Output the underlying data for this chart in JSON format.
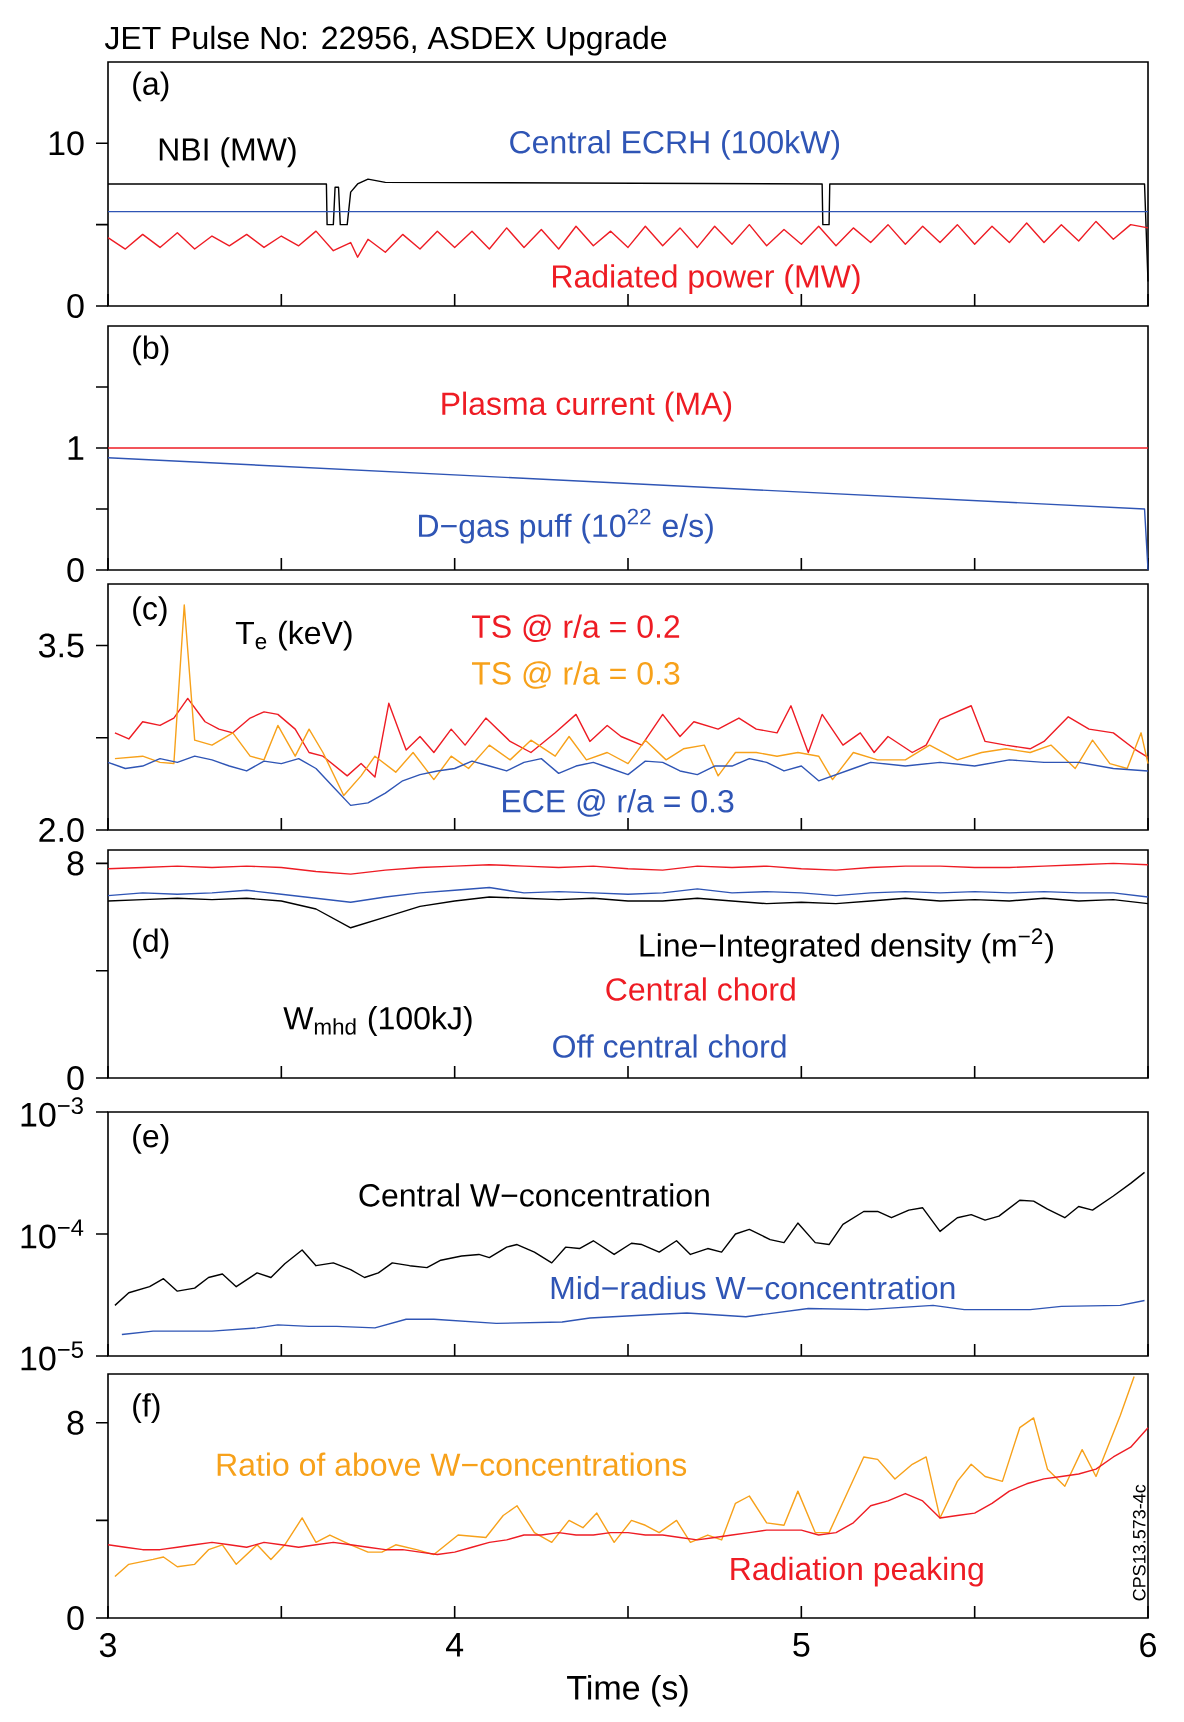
{
  "chart_data": [
    {
      "type": "line",
      "title": "JET Pulse No: 22956, ASDEX Upgrade",
      "annotations": [
        "(a)"
      ],
      "xlim": [
        3,
        6
      ],
      "ylim": [
        0,
        15
      ],
      "xticks": [
        3,
        3.5,
        4,
        4.5,
        5,
        5.5,
        6
      ],
      "yticks": [
        0,
        {
          "value": 5,
          "label": null
        },
        10
      ],
      "tick_labels": "y",
      "series": [
        {
          "name": "NBI (MW)",
          "color": "#000000",
          "x": [
            3,
            3.63,
            3.632,
            3.65,
            3.655,
            3.665,
            3.67,
            3.69,
            3.7,
            3.72,
            3.75,
            3.8,
            5.06,
            5.062,
            5.08,
            5.082,
            5.99,
            6
          ],
          "values": [
            7.5,
            7.5,
            5.0,
            5.0,
            7.3,
            7.3,
            5.0,
            5.0,
            7.0,
            7.5,
            7.8,
            7.6,
            7.5,
            5.0,
            5.0,
            7.5,
            7.5,
            1.5
          ]
        },
        {
          "name": "Central ECRH (100kW)",
          "color": "#2f55b5",
          "x": [
            3,
            4.5,
            6
          ],
          "values": [
            5.8,
            5.8,
            5.8
          ]
        },
        {
          "name": "Radiated power (MW)",
          "color": "#ee1c24",
          "x": [
            3.0,
            3.05,
            3.1,
            3.15,
            3.2,
            3.25,
            3.3,
            3.35,
            3.4,
            3.45,
            3.5,
            3.55,
            3.6,
            3.65,
            3.7,
            3.72,
            3.75,
            3.8,
            3.85,
            3.9,
            3.95,
            4.0,
            4.05,
            4.1,
            4.15,
            4.2,
            4.25,
            4.3,
            4.35,
            4.4,
            4.45,
            4.5,
            4.55,
            4.6,
            4.65,
            4.7,
            4.75,
            4.8,
            4.85,
            4.9,
            4.95,
            5.0,
            5.05,
            5.1,
            5.15,
            5.2,
            5.25,
            5.3,
            5.35,
            5.4,
            5.45,
            5.5,
            5.55,
            5.6,
            5.65,
            5.7,
            5.75,
            5.8,
            5.85,
            5.9,
            5.95,
            6.0
          ],
          "values": [
            4.2,
            3.5,
            4.4,
            3.6,
            4.5,
            3.5,
            4.3,
            3.7,
            4.4,
            3.6,
            4.3,
            3.7,
            4.6,
            3.4,
            3.9,
            3.0,
            4.1,
            3.3,
            4.4,
            3.5,
            4.6,
            3.6,
            4.6,
            3.5,
            4.8,
            3.6,
            4.7,
            3.5,
            4.9,
            3.7,
            4.6,
            3.6,
            4.9,
            3.7,
            4.8,
            3.6,
            4.9,
            3.8,
            5.0,
            3.7,
            4.7,
            3.8,
            4.9,
            3.7,
            4.8,
            3.9,
            5.0,
            3.8,
            4.9,
            3.9,
            5.0,
            3.8,
            4.9,
            3.9,
            5.1,
            3.9,
            5.0,
            4.0,
            5.2,
            4.1,
            5.0,
            4.8
          ]
        }
      ]
    },
    {
      "type": "line",
      "annotations": [
        "(b)"
      ],
      "xlim": [
        3,
        6
      ],
      "ylim": [
        0,
        2
      ],
      "xticks": [
        3,
        3.5,
        4,
        4.5,
        5,
        5.5,
        6
      ],
      "yticks": [
        0,
        {
          "value": 0.5,
          "label": null
        },
        1,
        {
          "value": 1.5,
          "label": null
        }
      ],
      "tick_labels": "y",
      "series": [
        {
          "name": "Plasma current (MA)",
          "color": "#ee1c24",
          "x": [
            3,
            3.5,
            4,
            4.5,
            5,
            5.5,
            6
          ],
          "values": [
            1.0,
            1.0,
            1.0,
            1.0,
            1.0,
            1.0,
            1.0
          ]
        },
        {
          "name": "D−gas puff (10$^{22}$ e/s)",
          "color": "#2f55b5",
          "x": [
            3,
            5.99,
            6
          ],
          "values": [
            0.92,
            0.5,
            0
          ]
        }
      ]
    },
    {
      "type": "line",
      "annotations": [
        "(c)",
        "T$_{e}$ (keV)"
      ],
      "xlim": [
        3,
        6
      ],
      "ylim": [
        2,
        4
      ],
      "xticks": [
        3,
        3.5,
        4,
        4.5,
        5,
        5.5,
        6
      ],
      "yticks": [
        {
          "value": 2,
          "label": "2.0"
        },
        {
          "value": 2.75,
          "label": null
        },
        3.5
      ],
      "tick_labels": "y",
      "series": [
        {
          "name": "TS @ r/a = 0.2",
          "color": "#ee1c24",
          "x": [
            3.02,
            3.06,
            3.1,
            3.15,
            3.19,
            3.23,
            3.28,
            3.32,
            3.36,
            3.41,
            3.45,
            3.49,
            3.54,
            3.58,
            3.62,
            3.69,
            3.73,
            3.77,
            3.81,
            3.86,
            3.9,
            3.94,
            3.99,
            4.03,
            4.09,
            4.16,
            4.22,
            4.29,
            4.35,
            4.39,
            4.44,
            4.48,
            4.54,
            4.6,
            4.65,
            4.69,
            4.76,
            4.82,
            4.87,
            4.93,
            4.97,
            5.02,
            5.06,
            5.12,
            5.17,
            5.21,
            5.25,
            5.32,
            5.36,
            5.4,
            5.49,
            5.53,
            5.59,
            5.66,
            5.7,
            5.77,
            5.83,
            5.9,
            5.96,
            6.0
          ],
          "values": [
            2.79,
            2.74,
            2.88,
            2.85,
            2.91,
            3.07,
            2.88,
            2.82,
            2.79,
            2.91,
            2.96,
            2.94,
            2.82,
            2.63,
            2.6,
            2.44,
            2.54,
            2.43,
            3.03,
            2.65,
            2.76,
            2.63,
            2.82,
            2.69,
            2.91,
            2.72,
            2.63,
            2.79,
            2.94,
            2.72,
            2.85,
            2.76,
            2.69,
            2.94,
            2.76,
            2.88,
            2.82,
            2.91,
            2.82,
            2.79,
            3.01,
            2.63,
            2.94,
            2.69,
            2.79,
            2.63,
            2.76,
            2.63,
            2.69,
            2.9,
            3.01,
            2.72,
            2.69,
            2.66,
            2.72,
            2.92,
            2.82,
            2.79,
            2.66,
            2.59
          ]
        },
        {
          "name": "TS @ r/a = 0.3",
          "color": "#f7a11a",
          "x": [
            3.02,
            3.1,
            3.15,
            3.19,
            3.22,
            3.25,
            3.3,
            3.36,
            3.41,
            3.45,
            3.49,
            3.54,
            3.58,
            3.62,
            3.68,
            3.73,
            3.77,
            3.83,
            3.88,
            3.94,
            3.99,
            4.04,
            4.1,
            4.16,
            4.22,
            4.29,
            4.33,
            4.38,
            4.44,
            4.5,
            4.55,
            4.61,
            4.66,
            4.72,
            4.76,
            4.81,
            4.87,
            4.93,
            4.99,
            5.05,
            5.09,
            5.15,
            5.22,
            5.3,
            5.37,
            5.45,
            5.52,
            5.59,
            5.66,
            5.72,
            5.79,
            5.84,
            5.89,
            5.94,
            5.98,
            6.0
          ],
          "values": [
            2.58,
            2.6,
            2.55,
            2.54,
            3.83,
            2.73,
            2.69,
            2.79,
            2.6,
            2.57,
            2.85,
            2.6,
            2.82,
            2.63,
            2.28,
            2.44,
            2.6,
            2.47,
            2.63,
            2.41,
            2.6,
            2.5,
            2.69,
            2.57,
            2.73,
            2.6,
            2.76,
            2.57,
            2.63,
            2.54,
            2.73,
            2.57,
            2.66,
            2.69,
            2.44,
            2.63,
            2.63,
            2.6,
            2.63,
            2.6,
            2.41,
            2.63,
            2.57,
            2.57,
            2.69,
            2.57,
            2.63,
            2.66,
            2.63,
            2.69,
            2.5,
            2.73,
            2.54,
            2.5,
            2.79,
            2.54
          ]
        },
        {
          "name": "ECE @ r/a = 0.3",
          "color": "#2f55b5",
          "x": [
            3.0,
            3.05,
            3.1,
            3.15,
            3.2,
            3.25,
            3.3,
            3.35,
            3.4,
            3.45,
            3.5,
            3.55,
            3.6,
            3.65,
            3.7,
            3.75,
            3.8,
            3.85,
            3.9,
            3.95,
            4.0,
            4.05,
            4.1,
            4.15,
            4.2,
            4.25,
            4.3,
            4.35,
            4.4,
            4.45,
            4.5,
            4.55,
            4.6,
            4.65,
            4.7,
            4.75,
            4.8,
            4.85,
            4.9,
            4.95,
            5.0,
            5.05,
            5.1,
            5.15,
            5.2,
            5.3,
            5.4,
            5.5,
            5.6,
            5.7,
            5.8,
            5.9,
            6.0
          ],
          "values": [
            2.55,
            2.5,
            2.52,
            2.58,
            2.55,
            2.6,
            2.57,
            2.52,
            2.48,
            2.56,
            2.54,
            2.58,
            2.5,
            2.35,
            2.2,
            2.22,
            2.3,
            2.4,
            2.45,
            2.48,
            2.5,
            2.56,
            2.52,
            2.48,
            2.55,
            2.58,
            2.46,
            2.52,
            2.55,
            2.5,
            2.45,
            2.56,
            2.55,
            2.48,
            2.45,
            2.52,
            2.52,
            2.58,
            2.55,
            2.48,
            2.52,
            2.4,
            2.45,
            2.5,
            2.55,
            2.52,
            2.55,
            2.52,
            2.57,
            2.55,
            2.55,
            2.5,
            2.48
          ]
        }
      ]
    },
    {
      "type": "line",
      "annotations": [
        "(d)"
      ],
      "legend_title": "Line−Integrated density (m$^{−2}$)",
      "xlim": [
        3,
        6
      ],
      "ylim": [
        0,
        8.5
      ],
      "xticks": [
        3,
        3.5,
        4,
        4.5,
        5,
        5.5,
        6
      ],
      "yticks": [
        0,
        {
          "value": 4,
          "label": null
        },
        8
      ],
      "tick_labels": "y",
      "series": [
        {
          "name": "W$_{mhd}$ (100kJ)",
          "color": "#000000",
          "x": [
            3.0,
            3.1,
            3.2,
            3.3,
            3.4,
            3.5,
            3.6,
            3.7,
            3.8,
            3.9,
            4.0,
            4.1,
            4.2,
            4.3,
            4.4,
            4.5,
            4.6,
            4.7,
            4.8,
            4.9,
            5.0,
            5.1,
            5.2,
            5.3,
            5.4,
            5.5,
            5.6,
            5.7,
            5.8,
            5.9,
            6.0
          ],
          "values": [
            6.6,
            6.65,
            6.7,
            6.65,
            6.7,
            6.6,
            6.3,
            5.6,
            6.0,
            6.4,
            6.6,
            6.75,
            6.7,
            6.65,
            6.7,
            6.6,
            6.6,
            6.7,
            6.6,
            6.5,
            6.55,
            6.5,
            6.6,
            6.7,
            6.6,
            6.65,
            6.6,
            6.7,
            6.6,
            6.65,
            6.5
          ]
        },
        {
          "name": "Central chord",
          "color": "#ee1c24",
          "x": [
            3.0,
            3.1,
            3.2,
            3.3,
            3.4,
            3.5,
            3.6,
            3.7,
            3.8,
            3.9,
            4.0,
            4.1,
            4.2,
            4.3,
            4.4,
            4.5,
            4.6,
            4.7,
            4.8,
            4.9,
            5.0,
            5.1,
            5.2,
            5.3,
            5.4,
            5.5,
            5.6,
            5.7,
            5.8,
            5.9,
            6.0
          ],
          "values": [
            7.8,
            7.85,
            7.9,
            7.85,
            7.9,
            7.85,
            7.7,
            7.6,
            7.75,
            7.85,
            7.9,
            7.95,
            7.9,
            7.85,
            7.9,
            7.8,
            7.75,
            7.9,
            7.85,
            7.9,
            7.8,
            7.75,
            7.85,
            7.9,
            7.9,
            7.85,
            7.85,
            7.9,
            7.95,
            8.0,
            7.95
          ]
        },
        {
          "name": "Off central chord",
          "color": "#2f55b5",
          "x": [
            3.0,
            3.1,
            3.2,
            3.3,
            3.4,
            3.5,
            3.6,
            3.7,
            3.8,
            3.9,
            4.0,
            4.1,
            4.2,
            4.3,
            4.4,
            4.5,
            4.6,
            4.7,
            4.8,
            4.9,
            5.0,
            5.1,
            5.2,
            5.3,
            5.4,
            5.5,
            5.6,
            5.7,
            5.8,
            5.9,
            6.0
          ],
          "values": [
            6.8,
            6.9,
            6.85,
            6.9,
            7.0,
            6.85,
            6.7,
            6.55,
            6.75,
            6.9,
            7.0,
            7.1,
            6.9,
            6.95,
            6.9,
            6.85,
            6.9,
            7.05,
            6.9,
            6.95,
            6.9,
            6.8,
            6.9,
            6.95,
            6.9,
            6.95,
            6.9,
            6.95,
            6.9,
            6.9,
            6.75
          ]
        }
      ]
    },
    {
      "type": "line",
      "annotations": [
        "(e)"
      ],
      "log": "y",
      "xlim": [
        3,
        6
      ],
      "ylim": [
        1e-05,
        0.001
      ],
      "xticks": [
        3,
        3.5,
        4,
        4.5,
        5,
        5.5,
        6
      ],
      "yticks": [
        {
          "value": 1e-05,
          "label": "10$^{−5}$"
        },
        {
          "value": 0.0001,
          "label": "10$^{−4}$"
        },
        {
          "value": 0.001,
          "label": "10$^{−3}$"
        }
      ],
      "tick_labels": "y",
      "series": [
        {
          "name": "Central W−concentration",
          "color": "#000000",
          "x": [
            3.02,
            3.06,
            3.12,
            3.16,
            3.2,
            3.25,
            3.29,
            3.33,
            3.37,
            3.43,
            3.47,
            3.51,
            3.56,
            3.6,
            3.65,
            3.7,
            3.74,
            3.78,
            3.82,
            3.87,
            3.92,
            3.96,
            4.02,
            4.07,
            4.1,
            4.15,
            4.18,
            4.23,
            4.28,
            4.32,
            4.36,
            4.4,
            4.46,
            4.51,
            4.54,
            4.59,
            4.64,
            4.68,
            4.73,
            4.77,
            4.81,
            4.85,
            4.91,
            4.95,
            4.99,
            5.04,
            5.08,
            5.12,
            5.18,
            5.22,
            5.26,
            5.31,
            5.35,
            5.4,
            5.45,
            5.49,
            5.53,
            5.57,
            5.63,
            5.67,
            5.71,
            5.76,
            5.8,
            5.84,
            5.9,
            5.95,
            5.99
          ],
          "values": [
            2.6e-05,
            3.3e-05,
            3.7e-05,
            4.3e-05,
            3.4e-05,
            3.6e-05,
            4.4e-05,
            4.7e-05,
            3.7e-05,
            4.8e-05,
            4.4e-05,
            5.7e-05,
            7.4e-05,
            5.5e-05,
            5.8e-05,
            5.1e-05,
            4.4e-05,
            4.8e-05,
            5.8e-05,
            5.5e-05,
            5.3e-05,
            6.1e-05,
            6.6e-05,
            6.8e-05,
            6.4e-05,
            7.8e-05,
            8.2e-05,
            7.1e-05,
            5.8e-05,
            7.8e-05,
            7.6e-05,
            8.8e-05,
            6.8e-05,
            8.4e-05,
            8.2e-05,
            7.1e-05,
            8.8e-05,
            6.8e-05,
            7.6e-05,
            7.1e-05,
            0.0001,
            0.000109,
            9e-05,
            8.5e-05,
            0.000123,
            8.5e-05,
            8.2e-05,
            0.00012,
            0.000153,
            0.000153,
            0.000136,
            0.000157,
            0.000164,
            0.000105,
            0.000136,
            0.000144,
            0.00013,
            0.00014,
            0.000189,
            0.000186,
            0.00016,
            0.000136,
            0.000168,
            0.000157,
            0.000205,
            0.00026,
            0.00032
          ]
        },
        {
          "name": "Mid−radius W−concentration",
          "color": "#2f55b5",
          "x": [
            3.04,
            3.13,
            3.3,
            3.43,
            3.49,
            3.58,
            3.66,
            3.77,
            3.86,
            3.94,
            4.12,
            4.31,
            4.39,
            4.59,
            4.67,
            4.84,
            5.02,
            5.19,
            5.38,
            5.47,
            5.66,
            5.75,
            5.92,
            5.99
          ],
          "values": [
            1.5e-05,
            1.6e-05,
            1.6e-05,
            1.7e-05,
            1.8e-05,
            1.75e-05,
            1.75e-05,
            1.7e-05,
            2e-05,
            2e-05,
            1.85e-05,
            1.9e-05,
            2.05e-05,
            2.2e-05,
            2.25e-05,
            2.1e-05,
            2.45e-05,
            2.4e-05,
            2.6e-05,
            2.4e-05,
            2.4e-05,
            2.55e-05,
            2.6e-05,
            2.85e-05
          ]
        }
      ]
    },
    {
      "type": "line",
      "annotations": [
        "(f)",
        "CPS13.573-4c"
      ],
      "xlabel": "Time (s)",
      "xlim": [
        3,
        6
      ],
      "ylim": [
        0,
        10
      ],
      "xticks": [
        3,
        {
          "value": 3.5,
          "label": null
        },
        4,
        {
          "value": 4.5,
          "label": null
        },
        5,
        {
          "value": 5.5,
          "label": null
        },
        6
      ],
      "yticks": [
        0,
        {
          "value": 4,
          "label": null
        },
        8
      ],
      "series": [
        {
          "name": "Ratio of above W−concentrations",
          "color": "#f7a11a",
          "x": [
            3.02,
            3.06,
            3.13,
            3.16,
            3.2,
            3.25,
            3.29,
            3.33,
            3.37,
            3.43,
            3.47,
            3.51,
            3.56,
            3.6,
            3.64,
            3.7,
            3.75,
            3.79,
            3.83,
            3.89,
            3.94,
            4.01,
            4.09,
            4.14,
            4.18,
            4.23,
            4.28,
            4.33,
            4.37,
            4.41,
            4.46,
            4.51,
            4.55,
            4.59,
            4.64,
            4.68,
            4.73,
            4.77,
            4.81,
            4.85,
            4.9,
            4.95,
            4.99,
            5.04,
            5.08,
            5.18,
            5.22,
            5.27,
            5.32,
            5.36,
            5.4,
            5.45,
            5.49,
            5.53,
            5.58,
            5.63,
            5.67,
            5.71,
            5.76,
            5.81,
            5.85,
            5.92,
            5.96
          ],
          "values": [
            1.7,
            2.2,
            2.4,
            2.5,
            2.1,
            2.2,
            2.8,
            3.0,
            2.2,
            3.0,
            2.4,
            3.0,
            4.1,
            3.1,
            3.4,
            3.0,
            2.7,
            2.7,
            3.0,
            2.8,
            2.6,
            3.4,
            3.3,
            4.2,
            4.6,
            3.5,
            3.1,
            4.0,
            3.7,
            4.3,
            3.1,
            4.0,
            3.8,
            3.5,
            4.0,
            3.1,
            3.4,
            3.2,
            4.7,
            5.0,
            3.9,
            3.8,
            5.2,
            3.5,
            3.5,
            6.6,
            6.5,
            5.7,
            6.3,
            6.6,
            4.1,
            5.6,
            6.3,
            5.8,
            5.6,
            7.8,
            8.2,
            6.1,
            5.4,
            6.9,
            5.8,
            8.3,
            9.9
          ]
        },
        {
          "name": "Radiation peaking",
          "color": "#ee1c24",
          "x": [
            3.0,
            3.05,
            3.1,
            3.15,
            3.2,
            3.25,
            3.3,
            3.35,
            3.4,
            3.45,
            3.5,
            3.55,
            3.6,
            3.65,
            3.7,
            3.75,
            3.8,
            3.85,
            3.9,
            3.95,
            4.0,
            4.05,
            4.1,
            4.15,
            4.2,
            4.25,
            4.3,
            4.35,
            4.4,
            4.45,
            4.5,
            4.55,
            4.6,
            4.65,
            4.7,
            4.75,
            4.8,
            4.85,
            4.9,
            4.95,
            5.0,
            5.05,
            5.1,
            5.15,
            5.2,
            5.25,
            5.3,
            5.35,
            5.4,
            5.45,
            5.5,
            5.55,
            5.6,
            5.65,
            5.7,
            5.75,
            5.8,
            5.85,
            5.9,
            5.95,
            6.0
          ],
          "values": [
            3.0,
            2.9,
            2.8,
            2.8,
            2.9,
            3.0,
            3.1,
            3.0,
            2.9,
            3.1,
            3.0,
            2.9,
            3.0,
            3.1,
            3.0,
            2.9,
            2.8,
            2.8,
            2.7,
            2.6,
            2.7,
            2.9,
            3.1,
            3.2,
            3.4,
            3.4,
            3.5,
            3.4,
            3.4,
            3.5,
            3.5,
            3.4,
            3.4,
            3.3,
            3.2,
            3.3,
            3.4,
            3.5,
            3.6,
            3.6,
            3.6,
            3.4,
            3.5,
            3.9,
            4.6,
            4.8,
            5.1,
            4.8,
            4.1,
            4.2,
            4.3,
            4.7,
            5.2,
            5.5,
            5.7,
            5.8,
            5.9,
            6.1,
            6.6,
            7.0,
            7.8
          ]
        }
      ]
    }
  ]
}
